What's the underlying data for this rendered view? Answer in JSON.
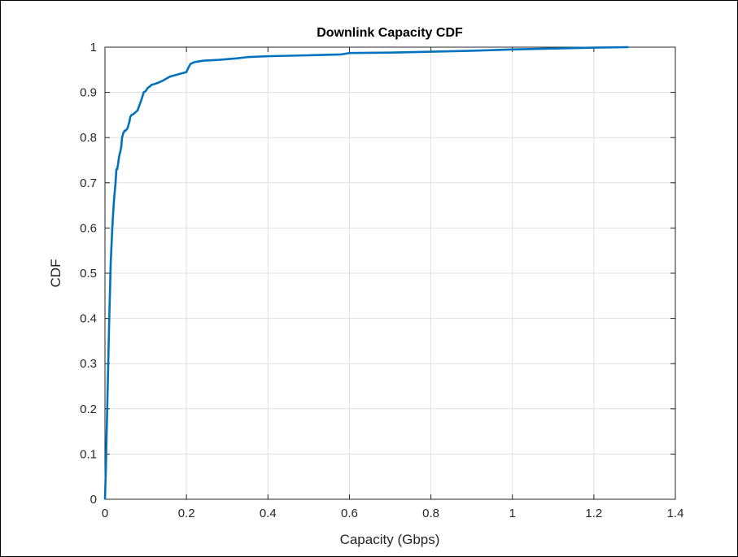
{
  "chart_data": {
    "type": "line",
    "title": "Downlink Capacity CDF",
    "xlabel": "Capacity (Gbps)",
    "ylabel": "CDF",
    "xlim": [
      0,
      1.4
    ],
    "ylim": [
      0,
      1
    ],
    "xticks": [
      "0",
      "0.2",
      "0.4",
      "0.6",
      "0.8",
      "1",
      "1.2",
      "1.4"
    ],
    "yticks": [
      "0",
      "0.1",
      "0.2",
      "0.3",
      "0.4",
      "0.5",
      "0.6",
      "0.7",
      "0.8",
      "0.9",
      "1"
    ],
    "grid": true,
    "line_color": "#0072BD",
    "series": [
      {
        "x": [
          0,
          0.002,
          0.004,
          0.006,
          0.008,
          0.01,
          0.012,
          0.014,
          0.016,
          0.018,
          0.02,
          0.022,
          0.024,
          0.026,
          0.028,
          0.03,
          0.032,
          0.035,
          0.038,
          0.04,
          0.042,
          0.045,
          0.048,
          0.05,
          0.055,
          0.06,
          0.062,
          0.065,
          0.07,
          0.08,
          0.09,
          0.095,
          0.1,
          0.105,
          0.11,
          0.115,
          0.12,
          0.13,
          0.14,
          0.15,
          0.16,
          0.18,
          0.2,
          0.205,
          0.21,
          0.22,
          0.24,
          0.28,
          0.32,
          0.35,
          0.4,
          0.5,
          0.58,
          0.6,
          0.7,
          0.8,
          0.9,
          1.0,
          1.1,
          1.2,
          1.285
        ],
        "y": [
          0,
          0.06,
          0.14,
          0.22,
          0.3,
          0.38,
          0.45,
          0.52,
          0.56,
          0.6,
          0.63,
          0.66,
          0.68,
          0.7,
          0.73,
          0.73,
          0.74,
          0.76,
          0.77,
          0.78,
          0.8,
          0.81,
          0.815,
          0.815,
          0.82,
          0.835,
          0.845,
          0.85,
          0.852,
          0.86,
          0.885,
          0.9,
          0.903,
          0.91,
          0.913,
          0.917,
          0.918,
          0.921,
          0.925,
          0.93,
          0.935,
          0.94,
          0.945,
          0.955,
          0.963,
          0.967,
          0.97,
          0.972,
          0.975,
          0.978,
          0.98,
          0.982,
          0.984,
          0.987,
          0.988,
          0.99,
          0.992,
          0.995,
          0.997,
          0.999,
          1.0
        ]
      }
    ]
  }
}
